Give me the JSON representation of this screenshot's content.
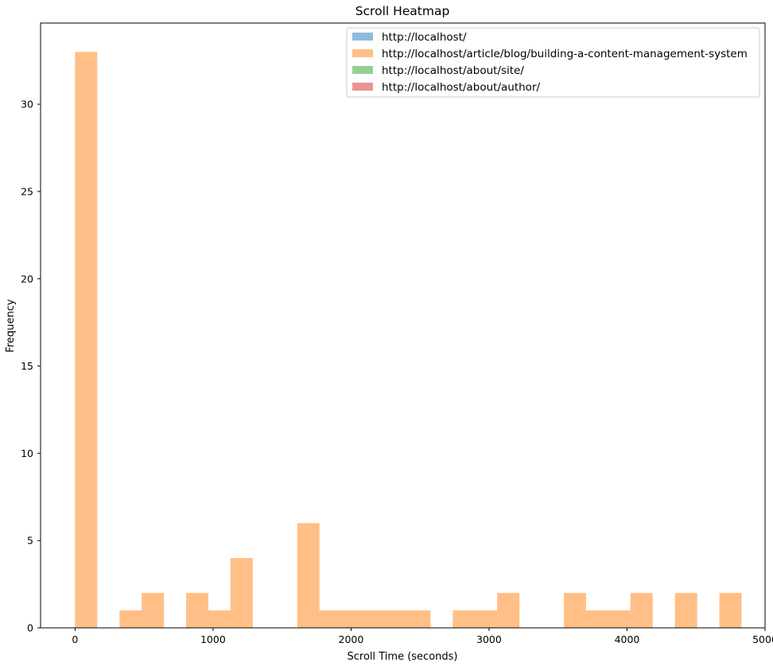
{
  "chart_data": {
    "type": "bar",
    "title": "Scroll Heatmap",
    "xlabel": "Scroll Time (seconds)",
    "ylabel": "Frequency",
    "xlim": [
      -250,
      5000
    ],
    "ylim": [
      0,
      34.65
    ],
    "x_ticks": [
      0,
      1000,
      2000,
      3000,
      4000,
      5000
    ],
    "y_ticks": [
      0,
      5,
      10,
      15,
      20,
      25,
      30
    ],
    "legend_position": "top-right",
    "grid": false,
    "series": [
      {
        "name": "http://localhost/",
        "color": "#1f77b4",
        "bins": []
      },
      {
        "name": "http://localhost/article/blog/building-a-content-management-system",
        "color": "#ff7f0e",
        "bins": [
          {
            "start": 0,
            "end": 161,
            "count": 33
          },
          {
            "start": 322,
            "end": 483,
            "count": 1
          },
          {
            "start": 483,
            "end": 644,
            "count": 2
          },
          {
            "start": 805,
            "end": 966,
            "count": 2
          },
          {
            "start": 966,
            "end": 1127,
            "count": 1
          },
          {
            "start": 1127,
            "end": 1288,
            "count": 4
          },
          {
            "start": 1610,
            "end": 1771,
            "count": 6
          },
          {
            "start": 1771,
            "end": 1932,
            "count": 1
          },
          {
            "start": 1932,
            "end": 2093,
            "count": 1
          },
          {
            "start": 2093,
            "end": 2254,
            "count": 1
          },
          {
            "start": 2254,
            "end": 2415,
            "count": 1
          },
          {
            "start": 2415,
            "end": 2576,
            "count": 1
          },
          {
            "start": 2737,
            "end": 2898,
            "count": 1
          },
          {
            "start": 2898,
            "end": 3059,
            "count": 1
          },
          {
            "start": 3059,
            "end": 3220,
            "count": 2
          },
          {
            "start": 3542,
            "end": 3703,
            "count": 2
          },
          {
            "start": 3703,
            "end": 3864,
            "count": 1
          },
          {
            "start": 3864,
            "end": 4025,
            "count": 1
          },
          {
            "start": 4025,
            "end": 4186,
            "count": 2
          },
          {
            "start": 4347,
            "end": 4508,
            "count": 2
          },
          {
            "start": 4669,
            "end": 4830,
            "count": 2
          }
        ]
      },
      {
        "name": "http://localhost/about/site/",
        "color": "#2ca02c",
        "bins": []
      },
      {
        "name": "http://localhost/about/author/",
        "color": "#d62728",
        "bins": []
      }
    ]
  }
}
